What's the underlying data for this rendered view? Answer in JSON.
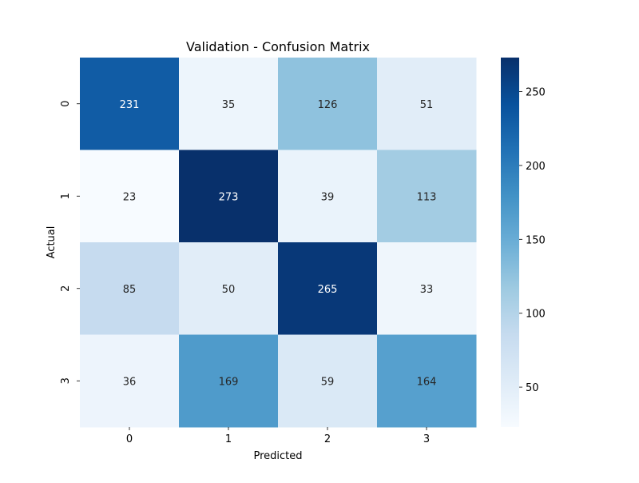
{
  "chart_data": {
    "type": "heatmap",
    "title": "Validation - Confusion Matrix",
    "xlabel": "Predicted",
    "ylabel": "Actual",
    "x_categories": [
      "0",
      "1",
      "2",
      "3"
    ],
    "y_categories": [
      "0",
      "1",
      "2",
      "3"
    ],
    "values": [
      [
        231,
        35,
        126,
        51
      ],
      [
        23,
        273,
        39,
        113
      ],
      [
        85,
        50,
        265,
        33
      ],
      [
        36,
        169,
        59,
        164
      ]
    ],
    "colormap": "Blues",
    "color_range": [
      23,
      273
    ],
    "colorbar": {
      "ticks": [
        50,
        100,
        150,
        200,
        250
      ]
    },
    "annotations": true
  }
}
